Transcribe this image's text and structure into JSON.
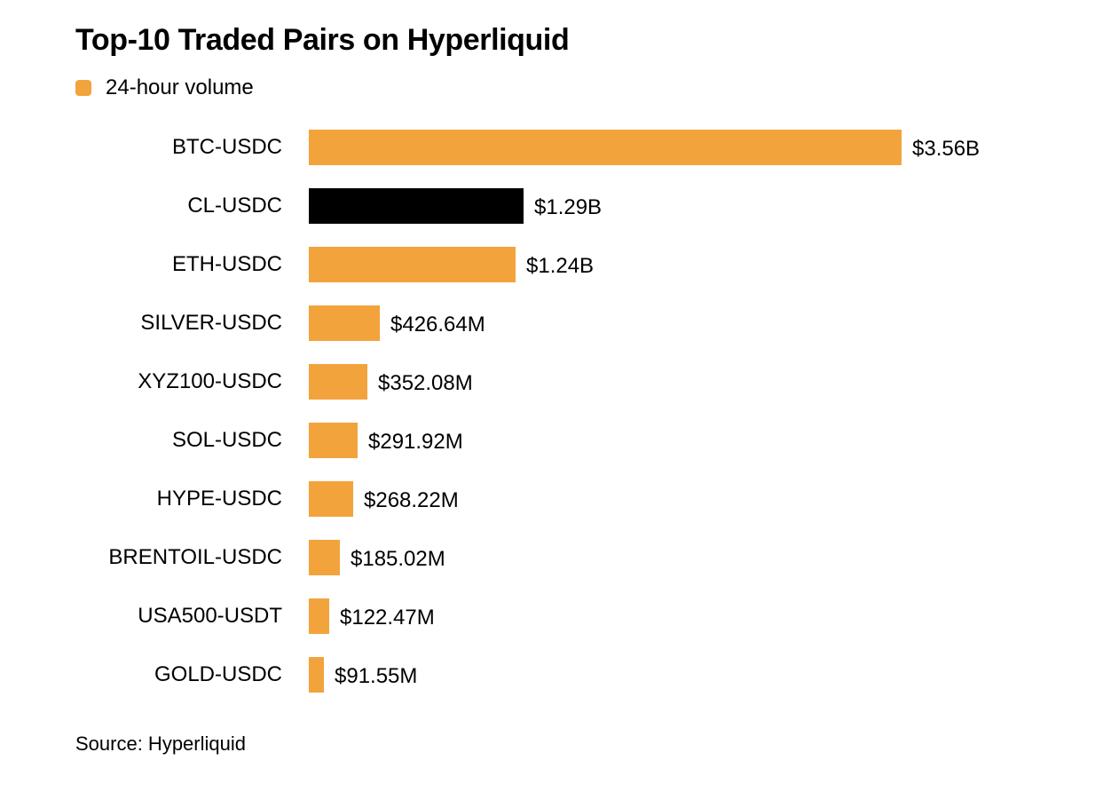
{
  "title": "Top-10 Traded Pairs on Hyperliquid",
  "legend": {
    "label": "24-hour volume",
    "color": "#F2A33C"
  },
  "source": "Source: Hyperliquid",
  "colors": {
    "bar_default": "#F2A33C",
    "bar_highlight": "#000000",
    "background": "#FFFFFF",
    "text": "#000000"
  },
  "chart_data": {
    "type": "bar",
    "orientation": "horizontal",
    "title": "Top-10 Traded Pairs on Hyperliquid",
    "legend_entries": [
      "24-hour volume"
    ],
    "legend_position": "top-left",
    "grid": false,
    "unit": "USD millions",
    "xlim": [
      0,
      3560
    ],
    "categories": [
      "BTC-USDC",
      "CL-USDC",
      "ETH-USDC",
      "SILVER-USDC",
      "XYZ100-USDC",
      "SOL-USDC",
      "HYPE-USDC",
      "BRENTOIL-USDC",
      "USA500-USDT",
      "GOLD-USDC"
    ],
    "values": [
      3560,
      1290,
      1240,
      426.64,
      352.08,
      291.92,
      268.22,
      185.02,
      122.47,
      91.55
    ],
    "value_labels": [
      "$3.56B",
      "$1.29B",
      "$1.24B",
      "$426.64M",
      "$352.08M",
      "$291.92M",
      "$268.22M",
      "$185.02M",
      "$122.47M",
      "$91.55M"
    ],
    "bar_colors": [
      "#F2A33C",
      "#000000",
      "#F2A33C",
      "#F2A33C",
      "#F2A33C",
      "#F2A33C",
      "#F2A33C",
      "#F2A33C",
      "#F2A33C",
      "#F2A33C"
    ]
  }
}
